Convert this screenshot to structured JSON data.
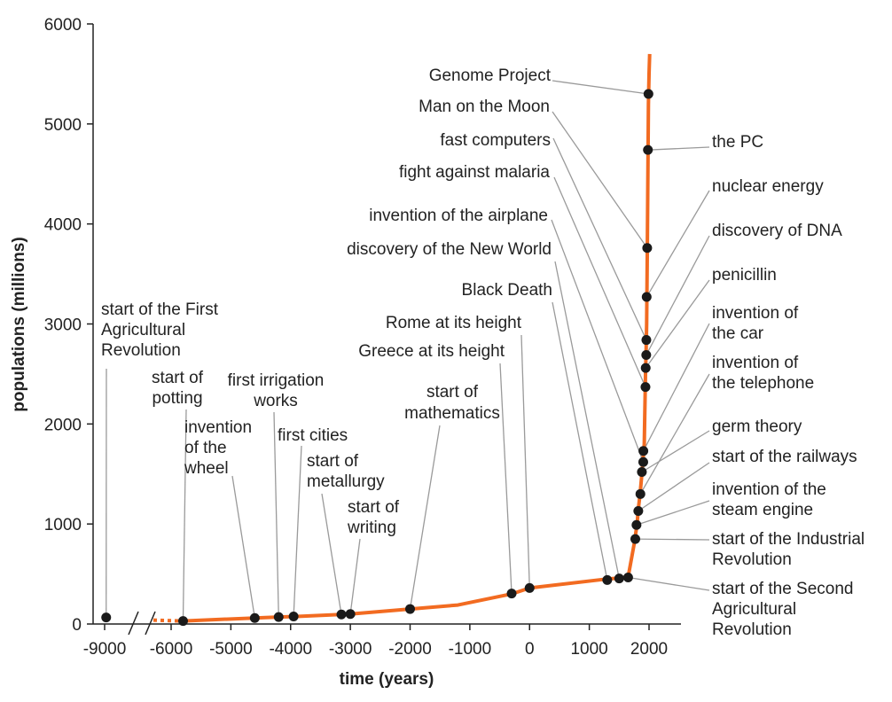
{
  "chart_data": {
    "type": "line",
    "xlabel": "time (years)",
    "ylabel": "populations (millions)",
    "xlim": [
      -9000,
      2500
    ],
    "ylim": [
      0,
      6000
    ],
    "x_ticks": [
      -9000,
      -6000,
      -5000,
      -4000,
      -3000,
      -2000,
      -1000,
      0,
      1000,
      2000
    ],
    "y_ticks": [
      0,
      1000,
      2000,
      3000,
      4000,
      5000,
      6000
    ],
    "axis_break": "between -9000 and -6000",
    "grid": false,
    "line_color": "#f26b21",
    "point_color": "#1a1a1a",
    "curve": {
      "x": [
        -5800,
        -4600,
        -4200,
        -3900,
        -3150,
        -3000,
        -2000,
        -1200,
        -300,
        0,
        1300,
        1500,
        1650,
        1750,
        1800,
        1820,
        1850,
        1880,
        1900,
        1920,
        1940,
        1950,
        1960,
        1970,
        1990,
        2000,
        2010
      ],
      "y": [
        30,
        60,
        70,
        75,
        95,
        100,
        150,
        190,
        300,
        360,
        450,
        460,
        470,
        800,
        1000,
        1150,
        1300,
        1500,
        1650,
        1800,
        2500,
        2700,
        3000,
        3700,
        5200,
        5500,
        5700
      ]
    },
    "events": [
      {
        "label": "start of the First Agricultural Revolution",
        "x": -8930,
        "y": 65
      },
      {
        "label": "start of potting",
        "x": -5800,
        "y": 30
      },
      {
        "label": "invention of the wheel",
        "x": -4600,
        "y": 60
      },
      {
        "label": "first irrigation works",
        "x": -4200,
        "y": 70
      },
      {
        "label": "first cities",
        "x": -3950,
        "y": 75
      },
      {
        "label": "start of metallurgy",
        "x": -3150,
        "y": 95
      },
      {
        "label": "start of writing",
        "x": -3000,
        "y": 100
      },
      {
        "label": "start of mathematics",
        "x": -2000,
        "y": 150
      },
      {
        "label": "Greece at its height",
        "x": -300,
        "y": 305
      },
      {
        "label": "Rome at its height",
        "x": 0,
        "y": 360
      },
      {
        "label": "Black Death",
        "x": 1300,
        "y": 440
      },
      {
        "label": "discovery of the New World",
        "x": 1500,
        "y": 455
      },
      {
        "label": "start of the Second Agricultural Revolution",
        "x": 1650,
        "y": 465
      },
      {
        "label": "start of the Industrial Revolution",
        "x": 1770,
        "y": 850
      },
      {
        "label": "invention of the steam engine",
        "x": 1790,
        "y": 990
      },
      {
        "label": "start of the railways",
        "x": 1820,
        "y": 1130
      },
      {
        "label": "invention of the telephone",
        "x": 1855,
        "y": 1300
      },
      {
        "label": "germ theory",
        "x": 1880,
        "y": 1520
      },
      {
        "label": "invention of the airplane",
        "x": 1903,
        "y": 1620
      },
      {
        "label": "invention of the car",
        "x": 1905,
        "y": 1730
      },
      {
        "label": "fight against malaria",
        "x": 1940,
        "y": 2370
      },
      {
        "label": "penicillin",
        "x": 1944,
        "y": 2560
      },
      {
        "label": "discovery of DNA",
        "x": 1953,
        "y": 2690
      },
      {
        "label": "fast computers",
        "x": 1955,
        "y": 2840
      },
      {
        "label": "nuclear energy",
        "x": 1960,
        "y": 3270
      },
      {
        "label": "Man on the Moon",
        "x": 1969,
        "y": 3760
      },
      {
        "label": "the PC",
        "x": 1981,
        "y": 4740
      },
      {
        "label": "Genome Project",
        "x": 1990,
        "y": 5300
      }
    ]
  }
}
